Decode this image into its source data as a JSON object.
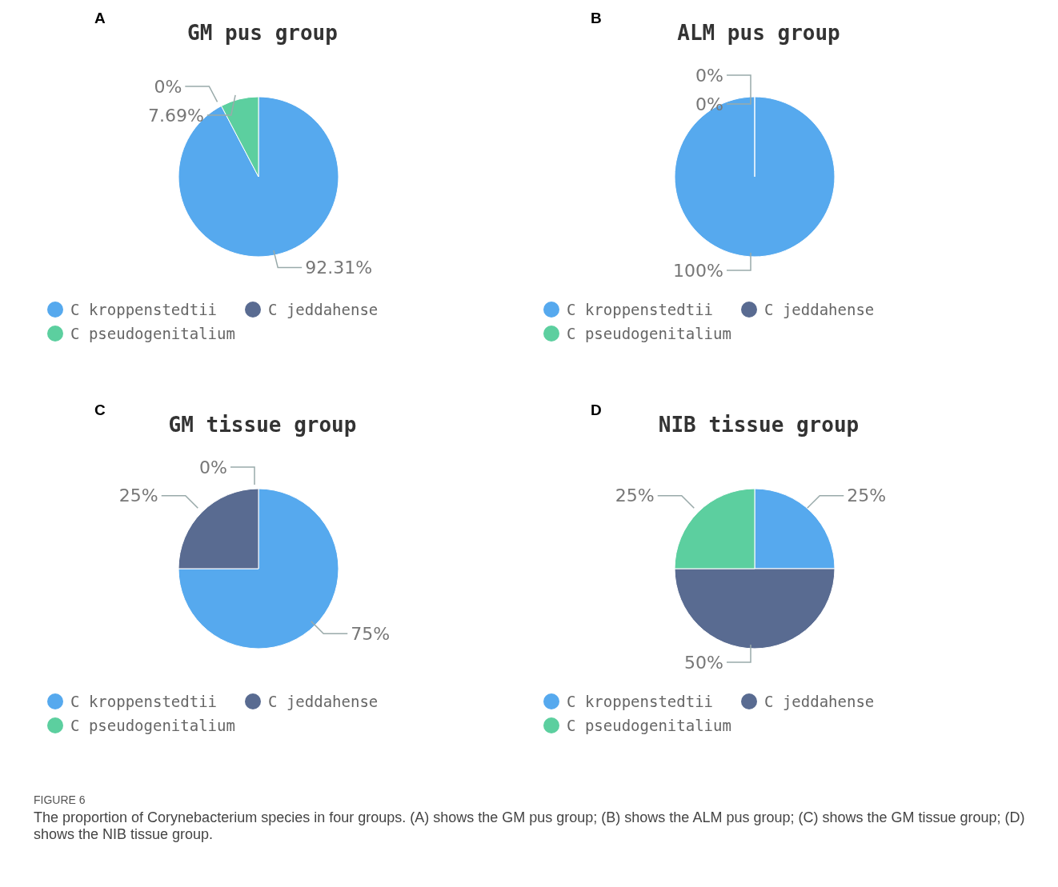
{
  "chart_data": [
    {
      "type": "pie",
      "title": "GM pus group",
      "annotations": [
        "A"
      ],
      "categories": [
        "C kroppenstedtii",
        "C jeddahense",
        "C pseudogenitalium"
      ],
      "values": [
        92.31,
        0,
        7.69
      ],
      "value_labels": [
        "92.31%",
        "0%",
        "7.69%"
      ],
      "colors": [
        "#56a9ee",
        "#596b91",
        "#5ccf9f"
      ],
      "legend": "bottom"
    },
    {
      "type": "pie",
      "title": "ALM pus group",
      "annotations": [
        "B"
      ],
      "categories": [
        "C kroppenstedtii",
        "C jeddahense",
        "C pseudogenitalium"
      ],
      "values": [
        100,
        0,
        0
      ],
      "value_labels": [
        "100%",
        "0%",
        "0%"
      ],
      "colors": [
        "#56a9ee",
        "#596b91",
        "#5ccf9f"
      ],
      "legend": "bottom"
    },
    {
      "type": "pie",
      "title": "GM tissue group",
      "annotations": [
        "C"
      ],
      "categories": [
        "C kroppenstedtii",
        "C jeddahense",
        "C pseudogenitalium"
      ],
      "values": [
        75,
        25,
        0
      ],
      "value_labels": [
        "75%",
        "25%",
        "0%"
      ],
      "colors": [
        "#56a9ee",
        "#596b91",
        "#5ccf9f"
      ],
      "legend": "bottom"
    },
    {
      "type": "pie",
      "title": "NIB tissue group",
      "annotations": [
        "D",
        "FIGURE 6",
        "The proportion of Corynebacterium species in four groups. (A) shows the GM pus group; (B) shows the ALM pus group; (C) shows the GM tissue group; (D) shows the NIB tissue group."
      ],
      "categories": [
        "C kroppenstedtii",
        "C jeddahense",
        "C pseudogenitalium"
      ],
      "values": [
        25,
        50,
        25
      ],
      "value_labels": [
        "25%",
        "50%",
        "25%"
      ],
      "colors": [
        "#56a9ee",
        "#596b91",
        "#5ccf9f"
      ],
      "legend": "bottom"
    }
  ]
}
